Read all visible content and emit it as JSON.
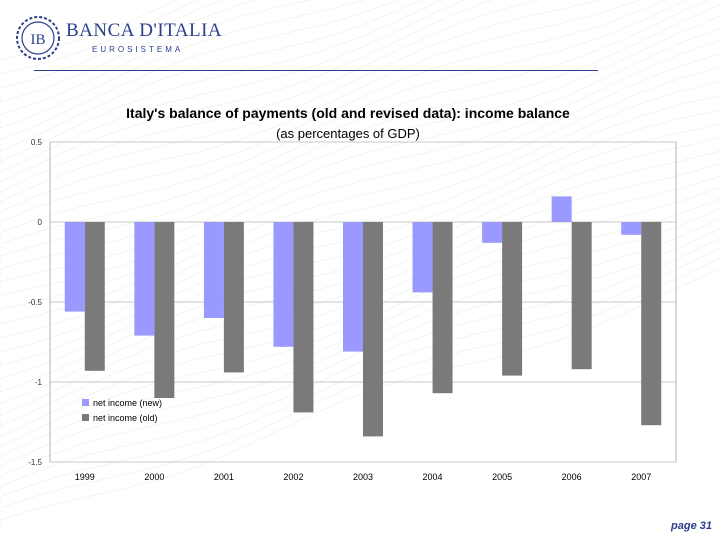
{
  "header": {
    "brand_name": "BANCA D'ITALIA",
    "brand_sub": "EUROSISTEMA",
    "logo_letters": "IB"
  },
  "footer": {
    "page_label": "page 31"
  },
  "colors": {
    "brand": "#2b3f8c",
    "series_new": "#9999ff",
    "series_old": "#7a7a7a",
    "grid": "#c8c8c8",
    "plot_border": "#b0b0b0"
  },
  "chart_data": {
    "type": "bar",
    "title": "Italy's balance of payments (old and revised data): income balance",
    "subtitle": "(as percentages of GDP)",
    "xlabel": "",
    "ylabel": "",
    "ylim": [
      -1.5,
      0.5
    ],
    "yticks": [
      0.5,
      0,
      -0.5,
      -1,
      -1.5
    ],
    "ytick_labels": [
      "0.5",
      "0",
      "-0.5",
      "-1",
      "-1.5"
    ],
    "grid": true,
    "legend_position": "bottom-left",
    "categories": [
      "1999",
      "2000",
      "2001",
      "2002",
      "2003",
      "2004",
      "2005",
      "2006",
      "2007"
    ],
    "series": [
      {
        "name": "net income (new)",
        "values": [
          -0.56,
          -0.71,
          -0.6,
          -0.78,
          -0.81,
          -0.44,
          -0.13,
          0.16,
          -0.08
        ]
      },
      {
        "name": "net income (old)",
        "values": [
          -0.93,
          -1.1,
          -0.94,
          -1.19,
          -1.34,
          -1.07,
          -0.96,
          -0.92,
          -1.27
        ]
      }
    ]
  }
}
